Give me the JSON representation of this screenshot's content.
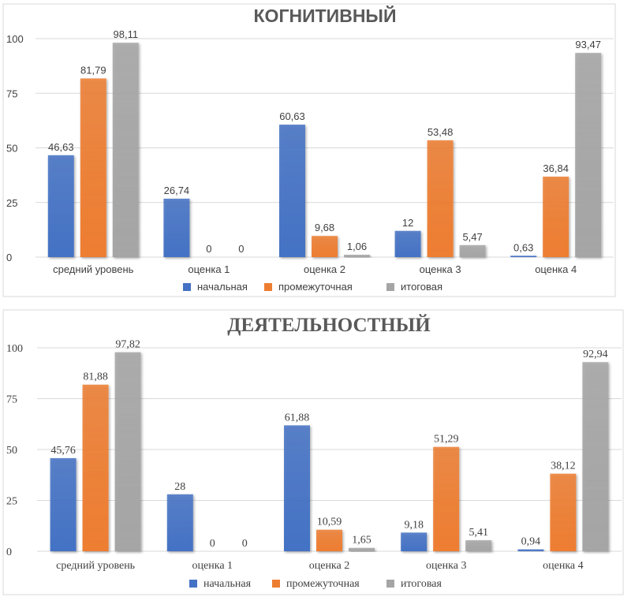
{
  "colors": {
    "series_1": "#4472c4",
    "series_2": "#ed7d31",
    "series_3": "#a5a5a5",
    "title": "#595959",
    "text": "#404040",
    "grid": "#d9d9d9"
  },
  "chart_data": [
    {
      "type": "bar",
      "title": "КОГНИТИВНЫЙ",
      "xlabel": "",
      "ylabel": "",
      "ylim": [
        0,
        100
      ],
      "yticks": [
        "0",
        "25",
        "50",
        "75",
        "100"
      ],
      "grid": true,
      "legend_position": "bottom",
      "categories": [
        "средний уровень",
        "оценка 1",
        "оценка 2",
        "оценка 3",
        "оценка 4"
      ],
      "series": [
        {
          "name": "начальная",
          "values": [
            46.63,
            26.74,
            60.63,
            12,
            0.63
          ],
          "labels": [
            "46,63",
            "26,74",
            "60,63",
            "12",
            "0,63"
          ]
        },
        {
          "name": "промежуточная",
          "values": [
            81.79,
            0,
            9.68,
            53.48,
            36.84
          ],
          "labels": [
            "81,79",
            "0",
            "9,68",
            "53,48",
            "36,84"
          ]
        },
        {
          "name": "итоговая",
          "values": [
            98.11,
            0,
            1.06,
            5.47,
            93.47
          ],
          "labels": [
            "98,11",
            "0",
            "1,06",
            "5,47",
            "93,47"
          ]
        }
      ]
    },
    {
      "type": "bar",
      "title": "ДЕЯТЕЛЬНОСТНЫЙ",
      "xlabel": "",
      "ylabel": "",
      "ylim": [
        0,
        100
      ],
      "yticks": [
        "0",
        "25",
        "50",
        "75",
        "100"
      ],
      "grid": true,
      "legend_position": "bottom",
      "categories": [
        "средний уровень",
        "оценка 1",
        "оценка 2",
        "оценка 3",
        "оценка 4"
      ],
      "series": [
        {
          "name": "начальная",
          "values": [
            45.76,
            28,
            61.88,
            9.18,
            0.94
          ],
          "labels": [
            "45,76",
            "28",
            "61,88",
            "9,18",
            "0,94"
          ]
        },
        {
          "name": "промежуточная",
          "values": [
            81.88,
            0,
            10.59,
            51.29,
            38.12
          ],
          "labels": [
            "81,88",
            "0",
            "10,59",
            "51,29",
            "38,12"
          ]
        },
        {
          "name": "итоговая",
          "values": [
            97.82,
            0,
            1.65,
            5.41,
            92.94
          ],
          "labels": [
            "97,82",
            "0",
            "1,65",
            "5,41",
            "92,94"
          ]
        }
      ]
    }
  ]
}
